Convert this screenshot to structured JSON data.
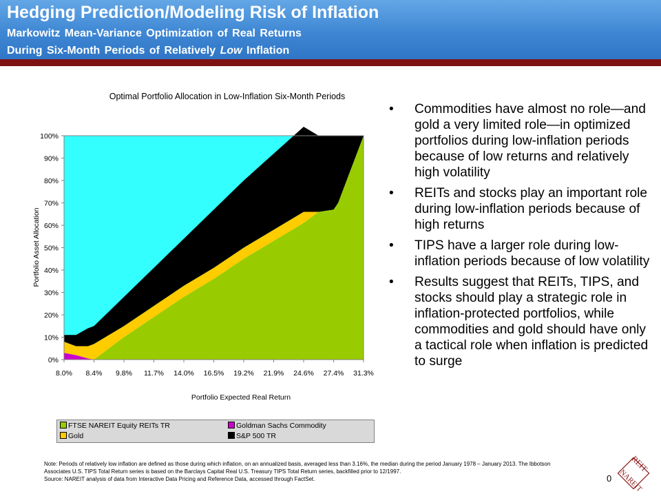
{
  "header": {
    "title": "Hedging Prediction/Modeling Risk of Inflation",
    "subtitle1": "Markowitz  Mean-Variance  Optimization  of  Real Returns",
    "subtitle2_pre": "During  Six-Month  Periods  of  Relatively ",
    "subtitle2_em": "Low",
    "subtitle2_post": " Inflation"
  },
  "colors": {
    "header_blue": "#3f87d4",
    "red_bar": "#7d1212",
    "reits": "#99cc00",
    "gold": "#ffcc00",
    "commodity": "#cc00cc",
    "sp500": "#000000",
    "tips_area": "#33ffff",
    "chart_bg": "#ffffff"
  },
  "chart_data": {
    "type": "area",
    "title": "Optimal Portfolio Allocation in Low-Inflation Six-Month Periods",
    "xlabel": "Portfolio Expected Real Return",
    "ylabel": "Portfolio Asset Allocation",
    "x_tick_labels": [
      "8.0%",
      "8.4%",
      "9.8%",
      "11.7%",
      "14.0%",
      "16.5%",
      "19.2%",
      "21.9%",
      "24.6%",
      "27.4%",
      "31.3%"
    ],
    "y_tick_labels": [
      "0%",
      "10%",
      "20%",
      "30%",
      "40%",
      "50%",
      "60%",
      "70%",
      "80%",
      "90%",
      "100%"
    ],
    "ylim": [
      0,
      100
    ],
    "grid": false,
    "legend_position": "bottom",
    "stacking_order": [
      "FTSE NAREIT Equity REITs TR",
      "Goldman Sachs Commodity",
      "Gold",
      "S&P 500 TR",
      "TIPS (remainder)"
    ],
    "x_positions": [
      0,
      0.4,
      0.8,
      1,
      2,
      3,
      4,
      5,
      6,
      7,
      8,
      8.5,
      9,
      9.15,
      10
    ],
    "series": [
      {
        "name": "FTSE NAREIT Equity REITs TR",
        "values": [
          0,
          0,
          0,
          0,
          10,
          19,
          28,
          36,
          45,
          53,
          61,
          66,
          67,
          70,
          100
        ]
      },
      {
        "name": "Goldman Sachs Commodity",
        "values": [
          3,
          2,
          0.5,
          0,
          0,
          0,
          0,
          0,
          0,
          0,
          0,
          0,
          0,
          0,
          0
        ]
      },
      {
        "name": "Gold",
        "values": [
          5,
          4,
          5.5,
          7,
          5,
          5,
          5,
          5,
          5,
          5,
          5,
          0,
          0,
          0,
          0
        ]
      },
      {
        "name": "S&P 500 TR",
        "values": [
          3,
          5,
          8,
          8,
          13,
          17,
          21,
          26,
          30,
          34,
          38,
          34,
          33,
          30,
          0
        ]
      }
    ],
    "legend": [
      {
        "name": "FTSE NAREIT Equity REITs TR",
        "color": "#99cc00"
      },
      {
        "name": "Goldman Sachs Commodity",
        "color": "#cc00cc"
      },
      {
        "name": "Gold",
        "color": "#ffcc00"
      },
      {
        "name": "S&P 500 TR",
        "color": "#000000"
      }
    ]
  },
  "bullets": [
    "Commodities have almost no role—and gold a very limited role—in optimized portfolios during low-inflation periods because of low returns and relatively high volatility",
    "REITs and stocks play an important role during low-inflation periods because of high returns",
    "TIPS have a larger role during low-inflation periods because of low volatility",
    "Results suggest that REITs, TIPS, and stocks should play a strategic role in inflation-protected portfolios, while commodities and gold should have only a tactical role when inflation is predicted to surge"
  ],
  "note": {
    "line1": "Note: Periods of relatively low inflation are defined as those during which inflation, on an annualized basis, averaged less than 3.16%, the median during the period January 1978 – January 2013.  The Ibbotson Associates U.S. TIPS Total Return series is based on the Barclays Capital Real U.S. Treasury TIPS Total Return series, backfilled prior to 12/1997.",
    "line2": "Source: NAREIT analysis of data from Interactive Data Pricing and Reference Data, accessed through FactSet."
  },
  "page_number": "0",
  "logo": {
    "text": "REIT NAREIT",
    "icon": "nareit-logo-icon",
    "color": "#8b1a1a"
  }
}
